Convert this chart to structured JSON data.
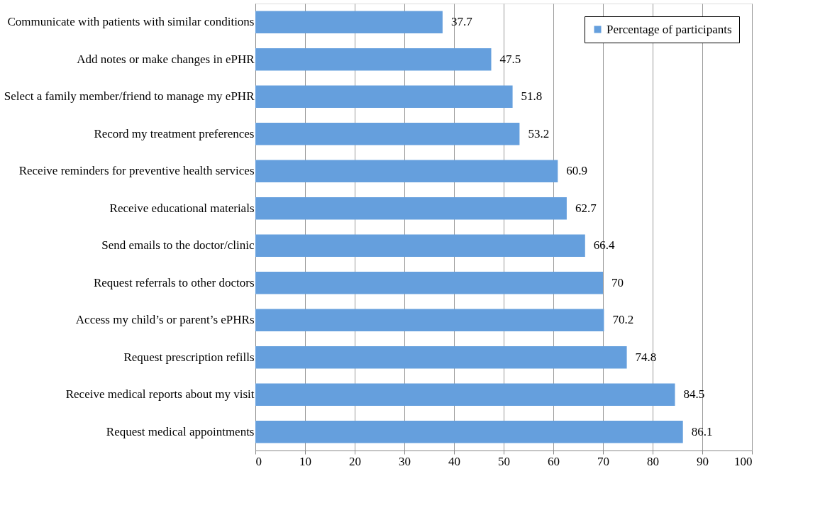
{
  "chart_data": {
    "type": "bar",
    "orientation": "horizontal",
    "categories": [
      "Communicate with  patients with similar conditions",
      "Add notes or make changes in ePHR",
      "Select a family member/friend to manage my ePHR",
      "Record my treatment preferences",
      "Receive reminders for preventive health services",
      "Receive educational materials",
      "Send emails to the  doctor/clinic",
      "Request  referrals to other doctors",
      "Access my child’s or parent’s ePHRs",
      "Request prescription refills",
      "Receive medical reports about my visit",
      "Request medical appointments"
    ],
    "series": [
      {
        "name": "Percentage of participants",
        "color": "#659fdd",
        "values": [
          37.7,
          47.5,
          51.8,
          53.2,
          60.9,
          62.7,
          66.4,
          70,
          70.2,
          74.8,
          84.5,
          86.1
        ]
      }
    ],
    "xlim": [
      0,
      100
    ],
    "xticks": [
      0,
      10,
      20,
      30,
      40,
      50,
      60,
      70,
      80,
      90,
      100
    ],
    "grid": "x",
    "legend": "top right",
    "data_labels": true
  }
}
